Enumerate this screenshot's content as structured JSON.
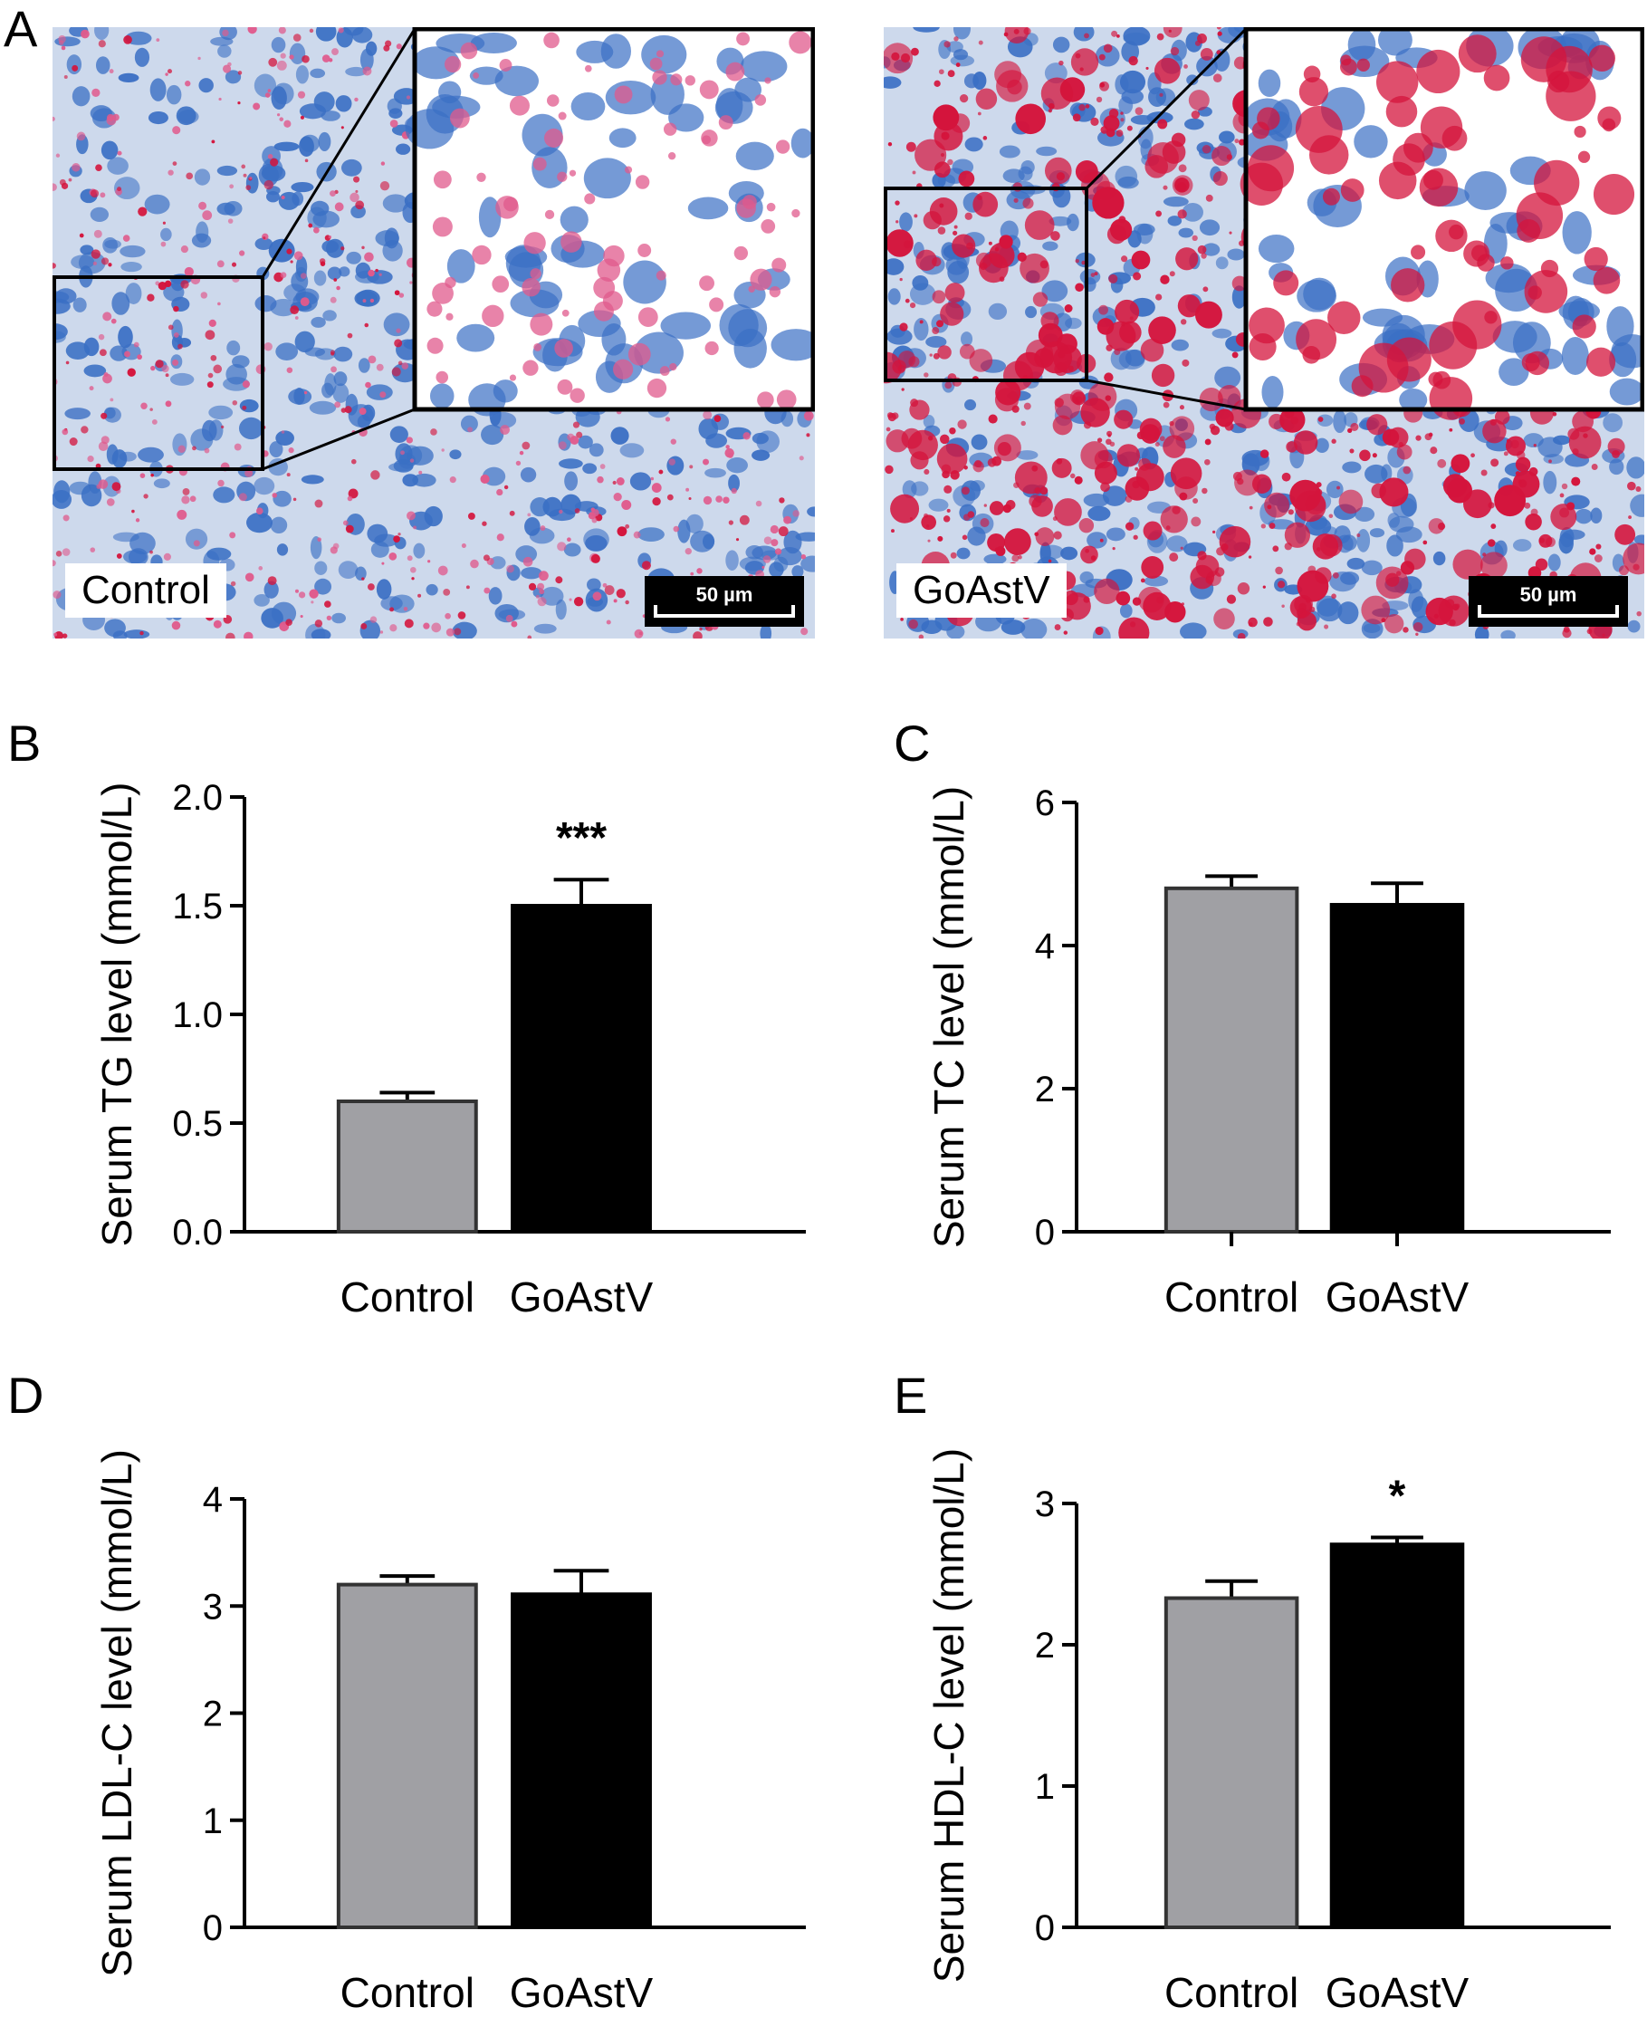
{
  "panels": {
    "A": {
      "letter": "A",
      "images": [
        {
          "label": "Control",
          "scale_bar": "50 µm"
        },
        {
          "label": "GoAstV",
          "scale_bar": "50 µm"
        }
      ]
    }
  },
  "colors": {
    "control_bar": "#a0a0a4",
    "goastv_bar": "#000000",
    "nucleus_blue": "#3a6fc4",
    "lipid_red": "#d4143c",
    "pink_stain": "#e05a8c",
    "background_tissue": "#cdd9ec"
  },
  "chart_data": [
    {
      "panel": "B",
      "type": "bar",
      "categories": [
        "Control",
        "GoAstV"
      ],
      "values": [
        0.6,
        1.5
      ],
      "errors": [
        0.04,
        0.12
      ],
      "annotations": [
        "",
        "***"
      ],
      "ylabel": "Serum TG level (mmol/L)",
      "ylim": [
        0,
        2.0
      ],
      "yticks": [
        "0.0",
        "0.5",
        "1.0",
        "1.5",
        "2.0"
      ]
    },
    {
      "panel": "C",
      "type": "bar",
      "categories": [
        "Control",
        "GoAstV"
      ],
      "values": [
        4.8,
        4.57
      ],
      "errors": [
        0.17,
        0.3
      ],
      "annotations": [
        "",
        ""
      ],
      "ylabel": "Serum TC level (mmol/L)",
      "ylim": [
        0,
        6
      ],
      "yticks": [
        "0",
        "2",
        "4",
        "6"
      ]
    },
    {
      "panel": "D",
      "type": "bar",
      "categories": [
        "Control",
        "GoAstV"
      ],
      "values": [
        3.2,
        3.11
      ],
      "errors": [
        0.08,
        0.22
      ],
      "annotations": [
        "",
        ""
      ],
      "ylabel": "Serum LDL-C level (mmol/L)",
      "ylim": [
        0,
        4
      ],
      "yticks": [
        "0",
        "1",
        "2",
        "3",
        "4"
      ]
    },
    {
      "panel": "E",
      "type": "bar",
      "categories": [
        "Control",
        "GoAstV"
      ],
      "values": [
        2.33,
        2.71
      ],
      "errors": [
        0.12,
        0.05
      ],
      "annotations": [
        "",
        "*"
      ],
      "ylabel": "Serum HDL-C level (mmol/L)",
      "ylim": [
        0,
        3
      ],
      "yticks": [
        "0",
        "1",
        "2",
        "3"
      ]
    }
  ]
}
